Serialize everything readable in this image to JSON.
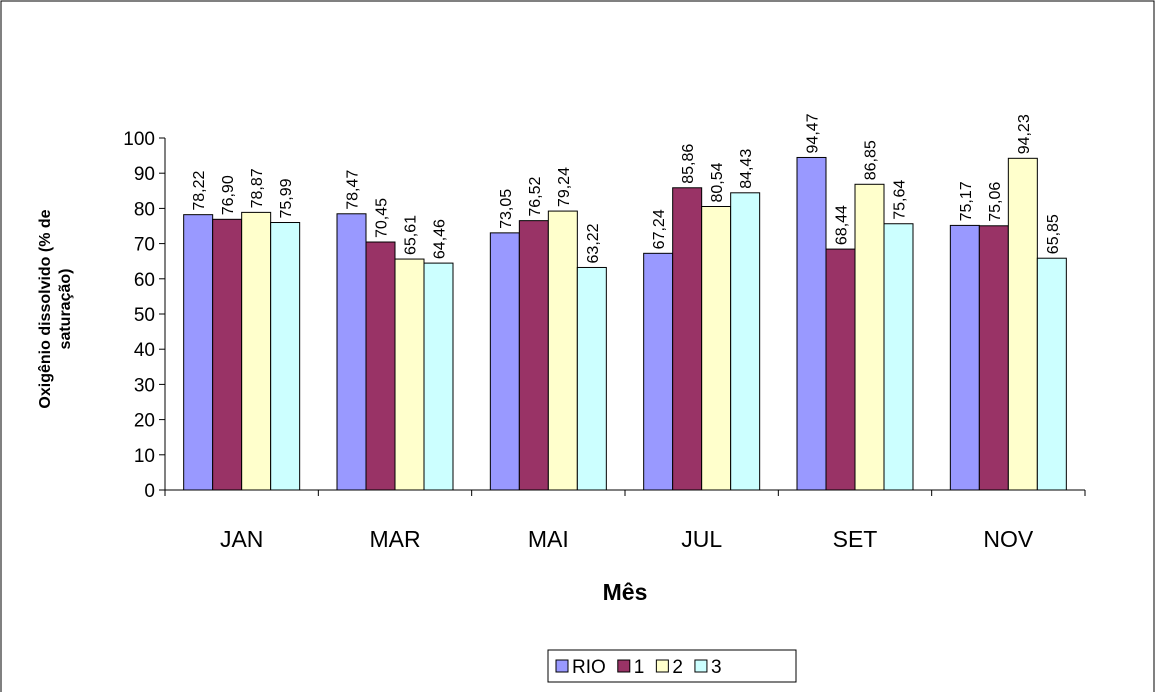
{
  "chart_data": {
    "type": "bar",
    "x_label": "Mês",
    "y_label": [
      "Oxigênio dissolvido (% de",
      "saturação)"
    ],
    "categories": [
      "JAN",
      "MAR",
      "MAI",
      "JUL",
      "SET",
      "NOV"
    ],
    "series": [
      {
        "name": "RIO",
        "color": "#9999ff",
        "values": [
          78.22,
          78.47,
          73.05,
          67.24,
          94.47,
          75.17
        ],
        "value_labels": [
          "78,22",
          "78,47",
          "73,05",
          "67,24",
          "94,47",
          "75,17"
        ]
      },
      {
        "name": "1",
        "color": "#993366",
        "values": [
          76.9,
          70.45,
          76.52,
          85.86,
          68.44,
          75.06
        ],
        "value_labels": [
          "76,90",
          "70,45",
          "76,52",
          "85,86",
          "68,44",
          "75,06"
        ]
      },
      {
        "name": "2",
        "color": "#ffffcc",
        "values": [
          78.87,
          65.61,
          79.24,
          80.54,
          86.85,
          94.23
        ],
        "value_labels": [
          "78,87",
          "65,61",
          "79,24",
          "80,54",
          "86,85",
          "94,23"
        ]
      },
      {
        "name": "3",
        "color": "#ccffff",
        "values": [
          75.99,
          64.46,
          63.22,
          84.43,
          75.64,
          65.85
        ],
        "value_labels": [
          "75,99",
          "64,46",
          "63,22",
          "84,43",
          "75,64",
          "65,85"
        ]
      }
    ],
    "ylim": [
      0,
      100
    ],
    "yticks": [
      0,
      10,
      20,
      30,
      40,
      50,
      60,
      70,
      80,
      90,
      100
    ],
    "grid": false,
    "legend": "bottom"
  }
}
